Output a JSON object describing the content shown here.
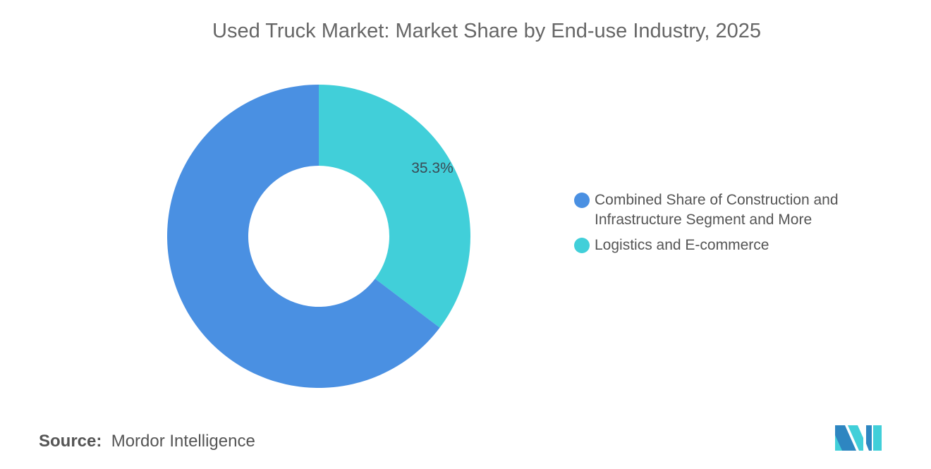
{
  "chart_data": {
    "type": "pie",
    "donut": true,
    "title": "Used Truck Market: Market Share by End-use Industry, 2025",
    "slices": [
      {
        "name": "Logistics and E-commerce",
        "value": 35.3,
        "label": "35.3%",
        "color": "#41CFD9"
      },
      {
        "name": "Combined Share of Construction and Infrastructure Segment and More",
        "value": 64.7,
        "label": "",
        "color": "#4A90E2"
      }
    ],
    "legend": {
      "placement": "right",
      "items": [
        {
          "label": "Combined Share of Construction and Infrastructure Segment and More",
          "color": "#4A90E2"
        },
        {
          "label": "Logistics and E-commerce",
          "color": "#41CFD9"
        }
      ]
    }
  },
  "source": {
    "label": "Source:",
    "value": "Mordor Intelligence"
  },
  "logo": {
    "text": "Mordor Intelligence"
  }
}
